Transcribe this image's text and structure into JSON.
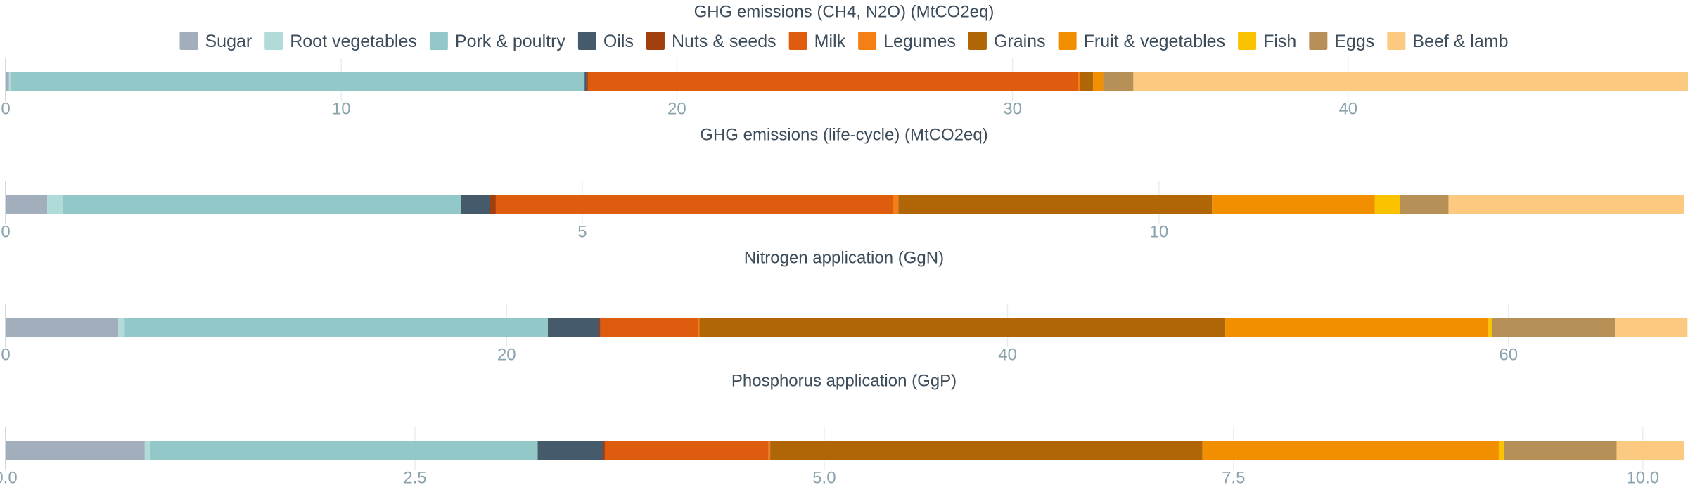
{
  "chart_data": {
    "type": "bar",
    "orientation": "horizontal",
    "stacked": true,
    "grid": true,
    "legend_position": "top",
    "legend": [
      {
        "name": "Sugar",
        "color": "#a2aebb"
      },
      {
        "name": "Root vegetables",
        "color": "#b1dbd9"
      },
      {
        "name": "Pork & poultry",
        "color": "#93c8c8"
      },
      {
        "name": "Oils",
        "color": "#455a6b"
      },
      {
        "name": "Nuts & seeds",
        "color": "#a23f0e"
      },
      {
        "name": "Milk",
        "color": "#dd5c0e"
      },
      {
        "name": "Legumes",
        "color": "#f57f17"
      },
      {
        "name": "Grains",
        "color": "#b06606"
      },
      {
        "name": "Fruit & vegetables",
        "color": "#f28f00"
      },
      {
        "name": "Fish",
        "color": "#fbc200"
      },
      {
        "name": "Eggs",
        "color": "#b79058"
      },
      {
        "name": "Beef & lamb",
        "color": "#fbca80"
      }
    ],
    "panels": [
      {
        "title": "GHG emissions (CH4, N2O) (MtCO2eq)",
        "xlim": [
          0,
          50
        ],
        "ticks": [
          0,
          10,
          20,
          30,
          40
        ],
        "tick_labels": [
          "0",
          "10",
          "20",
          "30",
          "40"
        ],
        "values": [
          0.1,
          0.05,
          17.1,
          0.05,
          0.05,
          14.6,
          0.05,
          0.4,
          0.3,
          0.0,
          0.9,
          16.55
        ]
      },
      {
        "title": "GHG emissions (life-cycle) (MtCO2eq)",
        "xlim": [
          0,
          14.55
        ],
        "ticks": [
          0,
          5,
          10
        ],
        "tick_labels": [
          "0",
          "5",
          "10"
        ],
        "values": [
          0.36,
          0.14,
          3.45,
          0.25,
          0.05,
          3.44,
          0.05,
          2.72,
          1.41,
          0.22,
          0.42,
          2.04
        ]
      },
      {
        "title": "Nitrogen application (GgN)",
        "xlim": [
          0,
          67
        ],
        "ticks": [
          0,
          20,
          40,
          60
        ],
        "tick_labels": [
          "0",
          "20",
          "40",
          "60"
        ],
        "values": [
          4.5,
          0.25,
          16.9,
          2.05,
          0.05,
          3.9,
          0.05,
          21.0,
          10.5,
          0.15,
          4.9,
          2.9
        ]
      },
      {
        "title": "Phosphorus application (GgP)",
        "xlim": [
          0,
          10.25
        ],
        "ticks": [
          0.0,
          2.5,
          5.0,
          7.5,
          10.0
        ],
        "tick_labels": [
          "0.0",
          "2.5",
          "5.0",
          "7.5",
          "10.0"
        ],
        "values": [
          0.85,
          0.03,
          2.37,
          0.4,
          0.01,
          1.0,
          0.01,
          2.64,
          1.81,
          0.03,
          0.69,
          0.41
        ]
      }
    ]
  }
}
